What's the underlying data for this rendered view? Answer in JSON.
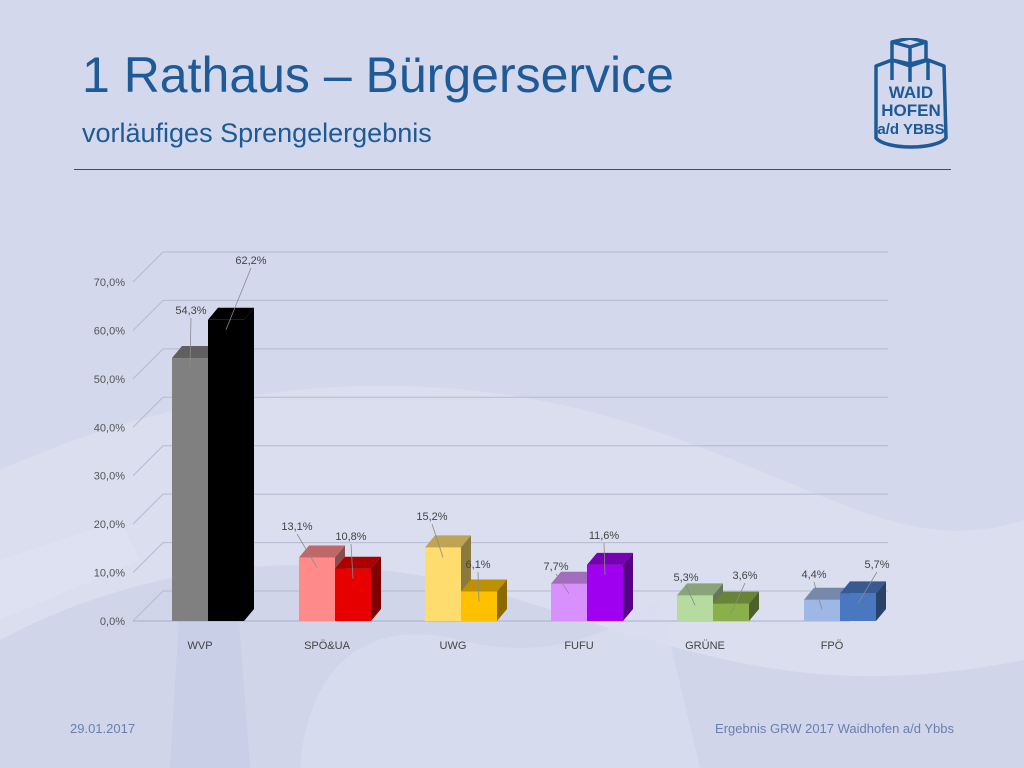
{
  "header": {
    "title": "1 Rathaus – Bürgerservice",
    "subtitle": "vorläufiges Sprengelergebnis"
  },
  "logo": {
    "line1": "WAID",
    "line2": "HOFEN",
    "line3": "a/d YBBS"
  },
  "footer": {
    "date": "29.01.2017",
    "text": "Ergebnis GRW 2017 Waidhofen a/d Ybbs"
  },
  "colors": {
    "background": "#d3d8ec",
    "accent": "#1d5a96"
  },
  "chart_data": {
    "type": "bar",
    "categories": [
      "WVP",
      "SPÖ&UA",
      "UWG",
      "FUFU",
      "GRÜNE",
      "FPÖ"
    ],
    "series": [
      {
        "values": [
          54.3,
          13.1,
          15.2,
          7.7,
          5.3,
          4.4
        ],
        "labels": [
          "54,3%",
          "13,1%",
          "15,2%",
          "7,7%",
          "5,3%",
          "4,4%"
        ],
        "colors": [
          "#808080",
          "#ff8a8a",
          "#ffdc6e",
          "#d890ff",
          "#b6dba0",
          "#9eb7e4"
        ]
      },
      {
        "values": [
          62.2,
          10.8,
          6.1,
          11.6,
          3.6,
          5.7
        ],
        "labels": [
          "62,2%",
          "10,8%",
          "6,1%",
          "11,6%",
          "3,6%",
          "5,7%"
        ],
        "colors": [
          "#000000",
          "#e60000",
          "#ffc000",
          "#a000f0",
          "#8ab04a",
          "#4a78c0"
        ]
      }
    ],
    "y_ticks": [
      "0,0%",
      "10,0%",
      "20,0%",
      "30,0%",
      "40,0%",
      "50,0%",
      "60,0%",
      "70,0%"
    ],
    "ylim": [
      0,
      70
    ],
    "grid": true,
    "style": "3d-clustered-column"
  }
}
